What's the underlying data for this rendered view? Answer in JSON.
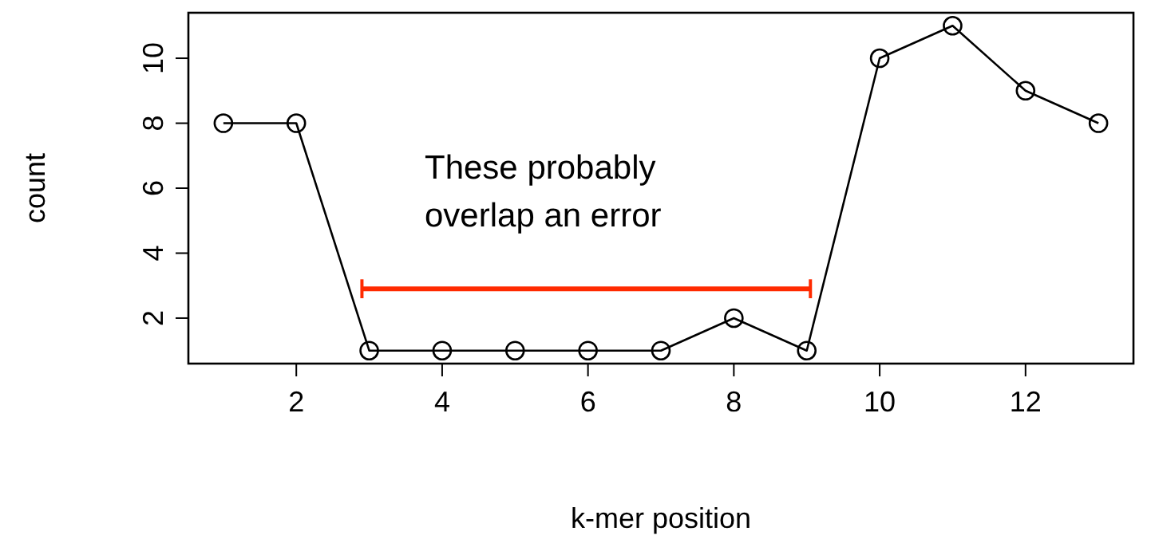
{
  "chart_data": {
    "type": "line",
    "xlabel": "k-mer position",
    "ylabel": "count",
    "x": [
      1,
      2,
      3,
      4,
      5,
      6,
      7,
      8,
      9,
      10,
      11,
      12,
      13
    ],
    "series": [
      {
        "color": "#000000",
        "values": [
          8,
          8,
          1,
          1,
          1,
          1,
          1,
          2,
          1,
          10,
          11,
          9,
          8
        ]
      },
      {
        "color": "#ff2a00",
        "x": [
          2.9,
          9.05
        ],
        "values": [
          2.9,
          2.9
        ],
        "marker": "none"
      }
    ],
    "xlim": [
      0.52,
      13.48
    ],
    "xticks": [
      2,
      4,
      6,
      8,
      10,
      12
    ],
    "ylim": [
      0.6,
      11.4
    ],
    "yticks": [
      2,
      4,
      6,
      8,
      10
    ],
    "marker": "circle",
    "line_style": "solid",
    "grid": false,
    "annotations": [
      "These probably overlap an error"
    ]
  }
}
